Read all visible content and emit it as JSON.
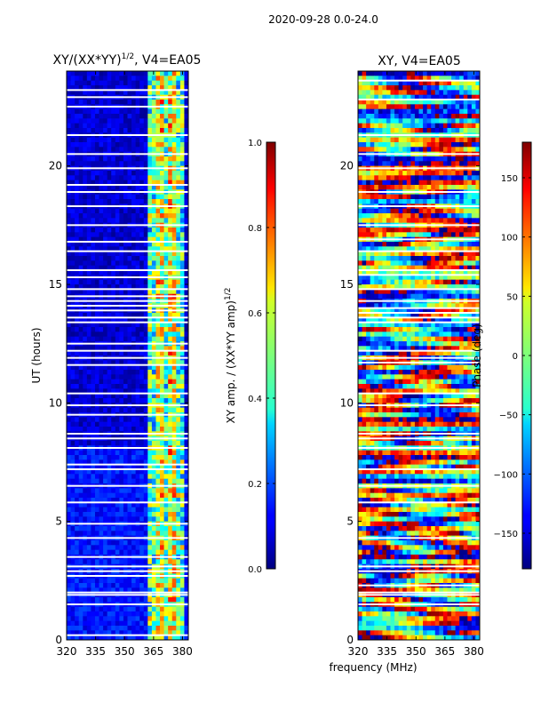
{
  "suptitle": "2020-09-28 0.0-24.0",
  "shared_xlabel": "frequency (MHz)",
  "chart_data": [
    {
      "type": "heatmap",
      "title": "XY/(XX*YY)$^{1/2}$, V4=EA05",
      "title_main": "XY/(XX*YY)",
      "title_sup": "1/2",
      "title_tail": ", V4=EA05",
      "xlabel": "frequency (MHz)",
      "ylabel": "UT (hours)",
      "xlim": [
        320,
        383
      ],
      "ylim": [
        0,
        24
      ],
      "xticks": [
        320,
        335,
        350,
        365,
        380
      ],
      "yticks": [
        0,
        5,
        10,
        15,
        20
      ],
      "colorbar": {
        "label_main": "XY amp. / (XX*YY amp)",
        "label_sup": "1/2",
        "range": [
          0.0,
          1.0
        ],
        "ticks": [
          "0.0",
          "0.2",
          "0.4",
          "0.6",
          "0.8",
          "1.0"
        ],
        "colormap": "jet"
      }
    },
    {
      "type": "heatmap",
      "title": "XY, V4=EA05",
      "xlabel": "frequency (MHz)",
      "ylabel": "",
      "xlim": [
        320,
        383
      ],
      "ylim": [
        0,
        24
      ],
      "xticks": [
        320,
        335,
        350,
        365,
        380
      ],
      "yticks": [
        0,
        5,
        10,
        15,
        20
      ],
      "colorbar": {
        "label_main": "Phase (deg)",
        "range": [
          -180,
          180
        ],
        "ticks": [
          "−150",
          "−100",
          "−50",
          "0",
          "50",
          "100",
          "150"
        ],
        "tick_values": [
          -150,
          -100,
          -50,
          0,
          50,
          100,
          150
        ],
        "colormap": "jet"
      }
    }
  ]
}
